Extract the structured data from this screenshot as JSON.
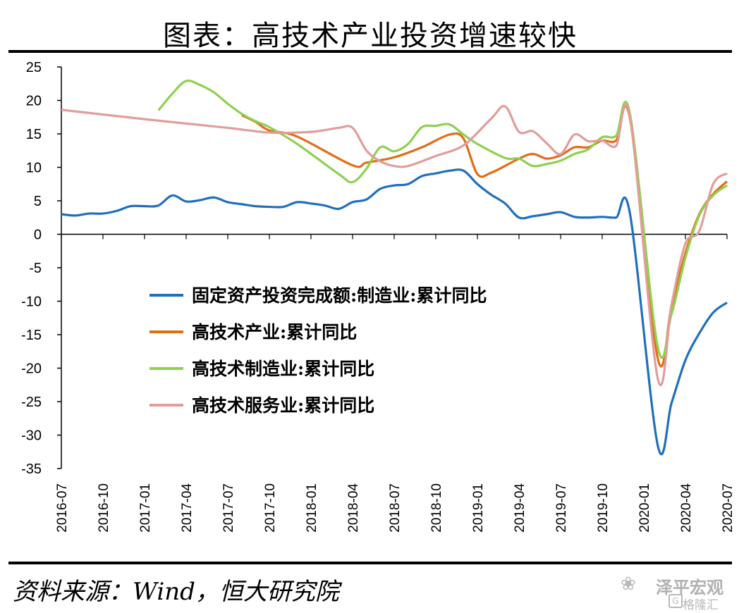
{
  "title": "图表：高技术产业投资增速较快",
  "source": "资料来源：Wind，恒大研究院",
  "watermark": {
    "wechat_icon": "wechat-icon",
    "name": "泽平宏观",
    "brand_icon": "gelonghui-icon",
    "brand": "格隆汇"
  },
  "chart_data": {
    "type": "line",
    "title": "图表：高技术产业投资增速较快",
    "ylim": [
      -35,
      25
    ],
    "yticks": [
      25,
      20,
      15,
      10,
      5,
      0,
      -5,
      -10,
      -15,
      -20,
      -25,
      -30,
      -35
    ],
    "xticks": [
      "2016-07",
      "2016-10",
      "2017-01",
      "2017-04",
      "2017-07",
      "2017-10",
      "2018-01",
      "2018-04",
      "2018-07",
      "2018-10",
      "2019-01",
      "2019-04",
      "2019-07",
      "2019-10",
      "2020-01",
      "2020-04",
      "2020-07"
    ],
    "x_start": "2016-07",
    "x_end": "2020-07",
    "grid": false,
    "legend_position": "center-left",
    "series": [
      {
        "name": "固定资产投资完成额:制造业:累计同比",
        "color": "#1f6fbf",
        "points": [
          [
            "2016-07",
            3.0
          ],
          [
            "2016-08",
            2.8
          ],
          [
            "2016-09",
            3.1
          ],
          [
            "2016-10",
            3.1
          ],
          [
            "2016-11",
            3.5
          ],
          [
            "2016-12",
            4.2
          ],
          [
            "2017-01",
            4.2
          ],
          [
            "2017-02",
            4.3
          ],
          [
            "2017-03",
            5.8
          ],
          [
            "2017-04",
            4.9
          ],
          [
            "2017-05",
            5.1
          ],
          [
            "2017-06",
            5.5
          ],
          [
            "2017-07",
            4.8
          ],
          [
            "2017-08",
            4.5
          ],
          [
            "2017-09",
            4.2
          ],
          [
            "2017-10",
            4.1
          ],
          [
            "2017-11",
            4.1
          ],
          [
            "2017-12",
            4.8
          ],
          [
            "2018-01",
            4.6
          ],
          [
            "2018-02",
            4.3
          ],
          [
            "2018-03",
            3.8
          ],
          [
            "2018-04",
            4.8
          ],
          [
            "2018-05",
            5.2
          ],
          [
            "2018-06",
            6.8
          ],
          [
            "2018-07",
            7.3
          ],
          [
            "2018-08",
            7.5
          ],
          [
            "2018-09",
            8.7
          ],
          [
            "2018-10",
            9.1
          ],
          [
            "2018-11",
            9.5
          ],
          [
            "2018-12",
            9.5
          ],
          [
            "2019-01",
            7.5
          ],
          [
            "2019-02",
            5.9
          ],
          [
            "2019-03",
            4.6
          ],
          [
            "2019-04",
            2.5
          ],
          [
            "2019-05",
            2.7
          ],
          [
            "2019-06",
            3.0
          ],
          [
            "2019-07",
            3.3
          ],
          [
            "2019-08",
            2.6
          ],
          [
            "2019-09",
            2.5
          ],
          [
            "2019-10",
            2.6
          ],
          [
            "2019-11",
            2.5
          ],
          [
            "2019-12",
            3.1
          ],
          [
            "2020-02",
            -31.5
          ],
          [
            "2020-03",
            -25.2
          ],
          [
            "2020-04",
            -18.8
          ],
          [
            "2020-05",
            -14.8
          ],
          [
            "2020-06",
            -11.7
          ],
          [
            "2020-07",
            -10.2
          ]
        ]
      },
      {
        "name": "高技术产业:累计同比",
        "color": "#e36c17",
        "points": [
          [
            "2017-08",
            17.8
          ],
          [
            "2017-09",
            16.8
          ],
          [
            "2017-10",
            15.5
          ],
          [
            "2017-12",
            14.6
          ],
          [
            "2018-04",
            10.3
          ],
          [
            "2018-05",
            10.7
          ],
          [
            "2018-07",
            11.5
          ],
          [
            "2018-09",
            13.0
          ],
          [
            "2018-11",
            14.9
          ],
          [
            "2018-12",
            14.3
          ],
          [
            "2019-01",
            9.0
          ],
          [
            "2019-02",
            9.2
          ],
          [
            "2019-04",
            11.3
          ],
          [
            "2019-05",
            12.0
          ],
          [
            "2019-06",
            11.3
          ],
          [
            "2019-07",
            11.8
          ],
          [
            "2019-08",
            13.0
          ],
          [
            "2019-09",
            13.0
          ],
          [
            "2019-10",
            14.0
          ],
          [
            "2019-11",
            14.0
          ],
          [
            "2019-12",
            17.3
          ],
          [
            "2020-02",
            -18.5
          ],
          [
            "2020-03",
            -10.7
          ],
          [
            "2020-04",
            -2.8
          ],
          [
            "2020-05",
            3.0
          ],
          [
            "2020-06",
            6.0
          ],
          [
            "2020-07",
            7.9
          ]
        ]
      },
      {
        "name": "高技术制造业:累计同比",
        "color": "#8fd14f",
        "points": [
          [
            "2017-02",
            18.5
          ],
          [
            "2017-03",
            21.0
          ],
          [
            "2017-04",
            22.9
          ],
          [
            "2017-05",
            22.3
          ],
          [
            "2017-06",
            21.2
          ],
          [
            "2017-07",
            19.5
          ],
          [
            "2017-08",
            18.0
          ],
          [
            "2017-09",
            16.9
          ],
          [
            "2017-10",
            16.0
          ],
          [
            "2017-12",
            13.5
          ],
          [
            "2018-03",
            9.0
          ],
          [
            "2018-04",
            7.8
          ],
          [
            "2018-05",
            9.8
          ],
          [
            "2018-06",
            13.0
          ],
          [
            "2018-07",
            12.4
          ],
          [
            "2018-08",
            13.5
          ],
          [
            "2018-09",
            16.0
          ],
          [
            "2018-10",
            16.2
          ],
          [
            "2018-11",
            16.4
          ],
          [
            "2018-12",
            14.9
          ],
          [
            "2019-01",
            13.5
          ],
          [
            "2019-03",
            11.4
          ],
          [
            "2019-04",
            11.3
          ],
          [
            "2019-05",
            10.2
          ],
          [
            "2019-06",
            10.5
          ],
          [
            "2019-07",
            11.0
          ],
          [
            "2019-08",
            12.0
          ],
          [
            "2019-09",
            12.7
          ],
          [
            "2019-10",
            14.5
          ],
          [
            "2019-11",
            14.7
          ],
          [
            "2019-12",
            18.0
          ],
          [
            "2020-02",
            -16.8
          ],
          [
            "2020-03",
            -11.9
          ],
          [
            "2020-04",
            -3.5
          ],
          [
            "2020-05",
            2.8
          ],
          [
            "2020-06",
            5.8
          ],
          [
            "2020-07",
            7.3
          ]
        ]
      },
      {
        "name": "高技术服务业:累计同比",
        "color": "#e39c9c",
        "points": [
          [
            "2016-07",
            18.6
          ],
          [
            "2017-01",
            17.2
          ],
          [
            "2017-07",
            15.9
          ],
          [
            "2017-10",
            15.2
          ],
          [
            "2018-01",
            15.3
          ],
          [
            "2018-03",
            15.9
          ],
          [
            "2018-04",
            15.9
          ],
          [
            "2018-05",
            12.5
          ],
          [
            "2018-06",
            10.9
          ],
          [
            "2018-07",
            10.2
          ],
          [
            "2018-08",
            10.2
          ],
          [
            "2018-10",
            11.7
          ],
          [
            "2018-12",
            13.3
          ],
          [
            "2019-02",
            17.3
          ],
          [
            "2019-03",
            19.1
          ],
          [
            "2019-04",
            15.3
          ],
          [
            "2019-05",
            15.4
          ],
          [
            "2019-06",
            13.6
          ],
          [
            "2019-07",
            12.0
          ],
          [
            "2019-08",
            14.9
          ],
          [
            "2019-09",
            13.9
          ],
          [
            "2019-10",
            14.0
          ],
          [
            "2019-11",
            13.2
          ],
          [
            "2019-12",
            17.5
          ],
          [
            "2020-02",
            -21.5
          ],
          [
            "2020-03",
            -10.5
          ],
          [
            "2020-04",
            -1.4
          ],
          [
            "2020-05",
            0.5
          ],
          [
            "2020-06",
            7.5
          ],
          [
            "2020-07",
            9.1
          ]
        ]
      }
    ]
  }
}
